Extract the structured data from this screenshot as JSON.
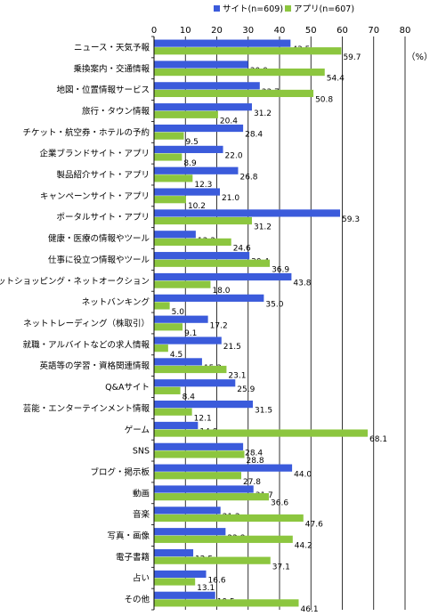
{
  "chart_data": {
    "type": "bar",
    "orientation": "horizontal",
    "unit_label": "（%）",
    "xlim": [
      0,
      80
    ],
    "ticks": [
      0,
      10,
      20,
      30,
      40,
      50,
      60,
      70,
      80
    ],
    "grid": true,
    "legend_position": "top",
    "categories": [
      "ニュース・天気予報",
      "乗換案内・交通情報",
      "地図・位置情報サービス",
      "旅行・タウン情報",
      "チケット・航空券・ホテルの予約",
      "企業ブランドサイト・アプリ",
      "製品紹介サイト・アプリ",
      "キャンペーンサイト・アプリ",
      "ポータルサイト・アプリ",
      "健康・医療の情報やツール",
      "仕事に役立つ情報やツール",
      "ネットショッピング・ネットオークション",
      "ネットバンキング",
      "ネットトレーディング（株取引）",
      "就職・アルバイトなどの求人情報",
      "英語等の学習・資格関連情報",
      "Q&Aサイト",
      "芸能・エンターテインメント情報",
      "ゲーム",
      "SNS",
      "ブログ・掲示板",
      "動画",
      "音楽",
      "写真・画像",
      "電子書籍",
      "占い",
      "その他"
    ],
    "series": [
      {
        "name": "サイト(n=609)",
        "color": "#3b5bdb",
        "values": [
          43.5,
          30.0,
          33.7,
          31.2,
          28.4,
          22.0,
          26.8,
          21.0,
          59.3,
          13.3,
          30.4,
          43.8,
          35.0,
          17.2,
          21.5,
          15.3,
          25.9,
          31.5,
          14.0,
          28.4,
          44.0,
          31.7,
          21.2,
          22.8,
          12.5,
          16.6,
          19.5
        ],
        "labels": [
          "43.5",
          "30.0",
          "33.7",
          "31.2",
          "28.4",
          "22.0",
          "26.8",
          "21.0",
          "59.3",
          "13.3",
          "30.4",
          "43.8",
          "35.0",
          "17.2",
          "21.5",
          "15.3",
          "25.9",
          "31.5",
          "14.0",
          "28.4",
          "44.0",
          "31.7",
          "21.2",
          "22.8",
          "12.5",
          "16.6",
          "19.5"
        ]
      },
      {
        "name": "アプリ(n=607)",
        "color": "#8cc63f",
        "values": [
          59.7,
          54.4,
          50.8,
          20.4,
          9.5,
          8.9,
          12.3,
          10.2,
          31.2,
          24.6,
          36.9,
          18.0,
          5.0,
          9.1,
          4.5,
          23.1,
          8.4,
          12.1,
          68.1,
          28.8,
          27.8,
          36.6,
          47.6,
          44.2,
          37.1,
          13.1,
          46.1
        ],
        "labels": [
          "59.7",
          "54.4",
          "50.8",
          "20.4",
          "9.5",
          "8.9",
          "12.3",
          "10.2",
          "31.2",
          "24.6",
          "36.9",
          "18.0",
          "5.0",
          "9.1",
          "4.5",
          "23.1",
          "8.4",
          "12.1",
          "68.1",
          "28.8",
          "27.8",
          "36.6",
          "47.6",
          "44.2",
          "37.1",
          "13.1",
          "46.1"
        ]
      }
    ]
  }
}
